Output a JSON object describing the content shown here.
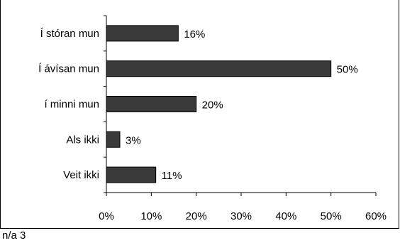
{
  "chart_data": {
    "type": "bar",
    "orientation": "horizontal",
    "categories": [
      "Í stóran mun",
      "Í ávísan mun",
      "í minni mun",
      "Als ikki",
      "Veit ikki"
    ],
    "values": [
      16,
      50,
      20,
      3,
      11
    ],
    "data_labels": [
      "16%",
      "50%",
      "20%",
      "3%",
      "11%"
    ],
    "xlim": [
      0,
      60
    ],
    "ticks": [
      "0%",
      "10%",
      "20%",
      "30%",
      "40%",
      "50%",
      "60%"
    ],
    "bar_color": "#3a3a3a",
    "grid": false,
    "legend": "none"
  },
  "footnote": "n/a 3"
}
